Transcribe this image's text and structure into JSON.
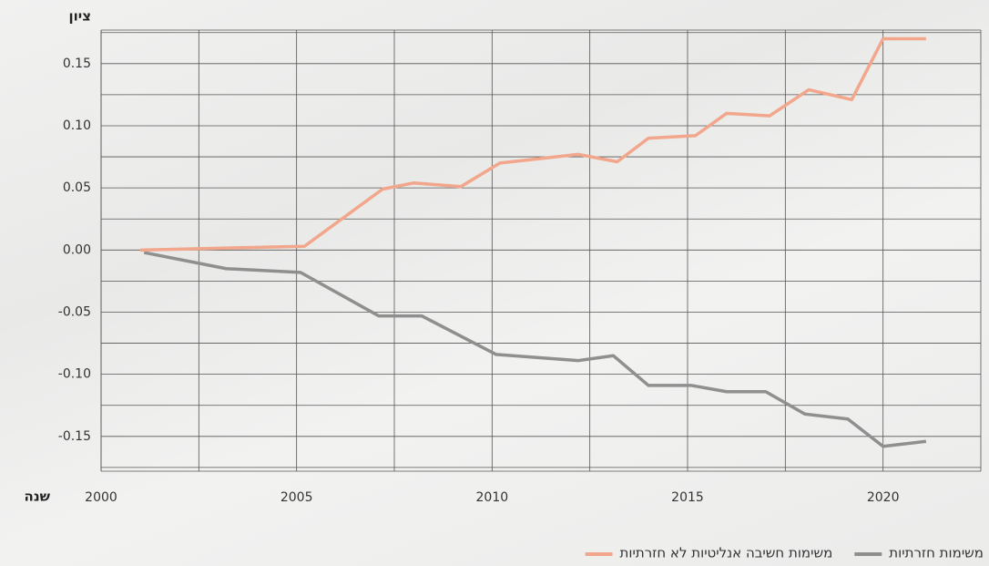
{
  "chart_data": {
    "type": "line",
    "y_label": "ציון",
    "x_label": "שנה",
    "xlim": [
      2000,
      2022.5
    ],
    "xticks": [
      2000,
      2005,
      2010,
      2015,
      2020
    ],
    "xminor_ticks": [
      2002.5,
      2007.5,
      2012.5,
      2017.5,
      2022.5
    ],
    "ylim": [
      -0.178,
      0.177
    ],
    "yticks": [
      -0.15,
      {
        "value": -0.1,
        "label": "-0.10"
      },
      -0.05,
      {
        "value": 0,
        "label": "0.00"
      },
      0.05,
      {
        "value": 0.1,
        "label": "0.10"
      },
      0.15
    ],
    "yminor_ticks": [
      -0.175,
      -0.125,
      -0.075,
      -0.025,
      0.025,
      0.075,
      0.125,
      0.175
    ],
    "grid": true,
    "series": [
      {
        "name": "משימות חזרתיות",
        "color": "#8f8f8f",
        "x": [
          2001.1,
          2003.2,
          2005.1,
          2007.1,
          2008.2,
          2010.1,
          2012.2,
          2013.1,
          2014,
          2015.1,
          2016,
          2017,
          2018,
          2019.1,
          2020,
          2021.1
        ],
        "values": [
          -0.002,
          -0.015,
          -0.018,
          -0.053,
          -0.053,
          -0.084,
          -0.089,
          -0.085,
          -0.109,
          -0.109,
          -0.114,
          -0.114,
          -0.132,
          -0.136,
          -0.158,
          -0.154
        ]
      },
      {
        "name": "משימות חשיבה אנליטיות לא חזרתיות",
        "color": "#f2a68c",
        "x": [
          2001,
          2005.2,
          2007.2,
          2008,
          2009.2,
          2010.2,
          2012.2,
          2013.2,
          2014,
          2015.2,
          2016,
          2017.1,
          2018.1,
          2019.2,
          2020,
          2021.1
        ],
        "values": [
          0,
          0.003,
          0.049,
          0.054,
          0.051,
          0.07,
          0.077,
          0.071,
          0.09,
          0.092,
          0.11,
          0.108,
          0.129,
          0.121,
          0.17,
          0.17
        ]
      }
    ]
  }
}
